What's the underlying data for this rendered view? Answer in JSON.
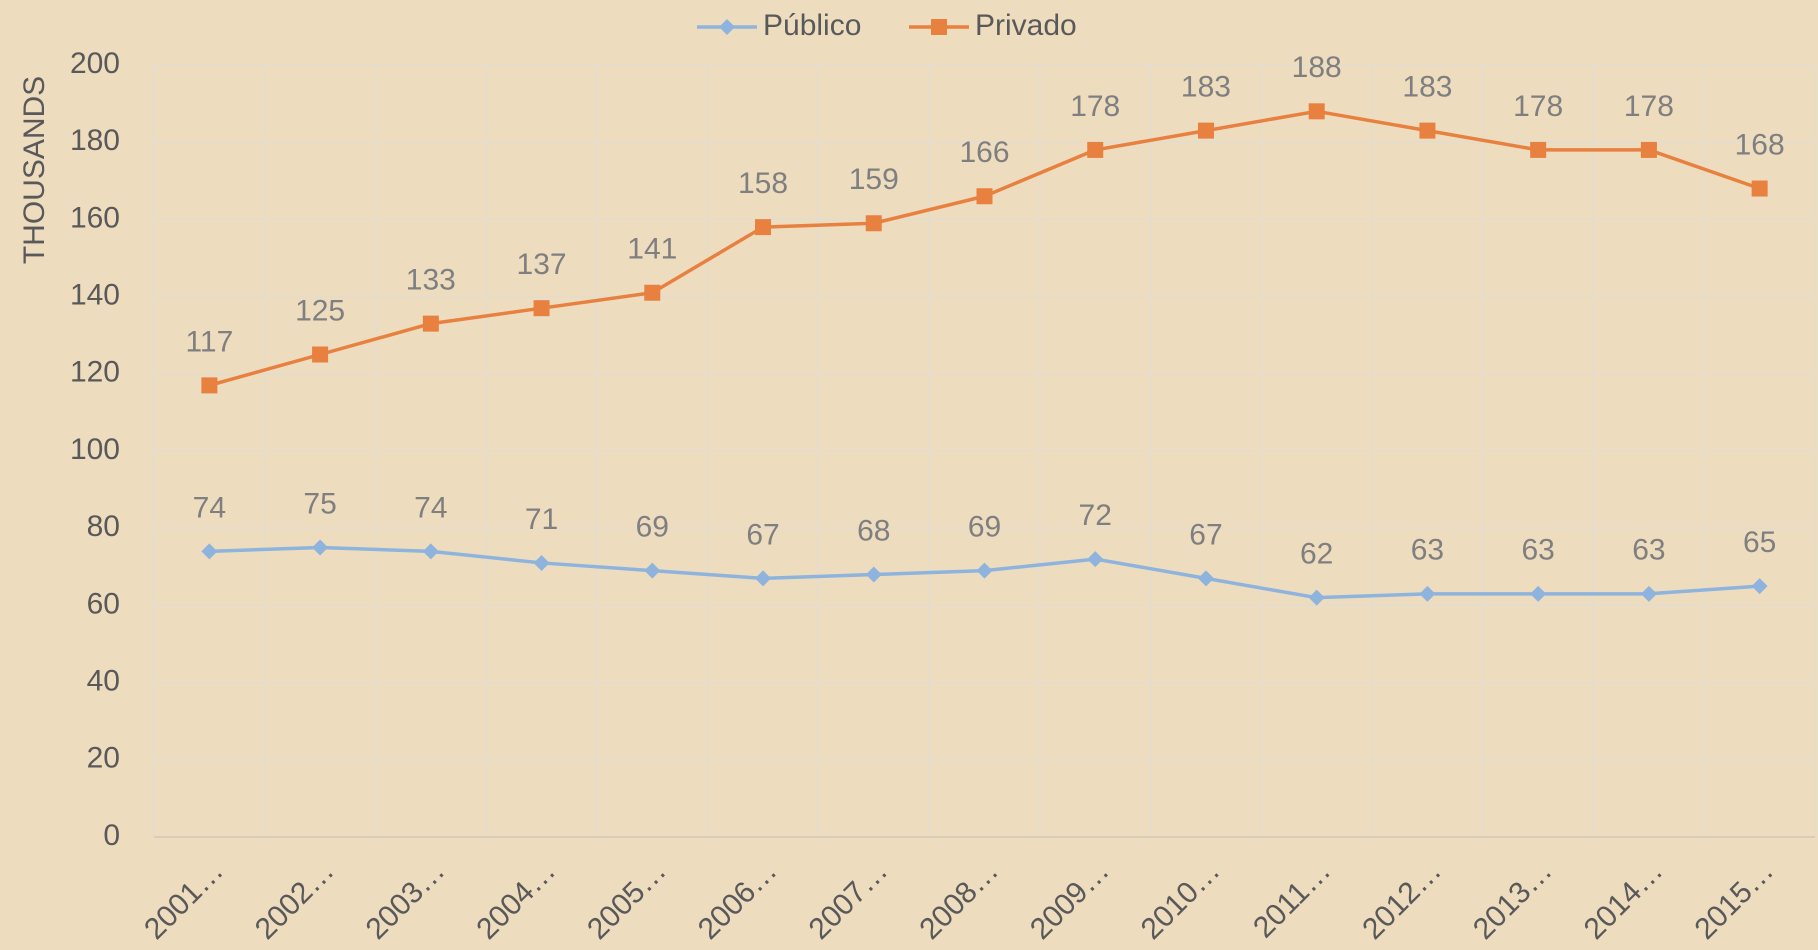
{
  "chart_data": {
    "type": "line",
    "y_label": "THOUSANDS",
    "categories": [
      "2001…",
      "2002…",
      "2003…",
      "2004…",
      "2005…",
      "2006…",
      "2007…",
      "2008…",
      "2009…",
      "2010…",
      "2011…",
      "2012…",
      "2013…",
      "2014…",
      "2015…"
    ],
    "series": [
      {
        "name": "Público",
        "color": "#8eb4de",
        "marker": "diamond",
        "values": [
          74,
          75,
          74,
          71,
          69,
          67,
          68,
          69,
          72,
          67,
          62,
          63,
          63,
          63,
          65
        ]
      },
      {
        "name": "Privado",
        "color": "#e8803f",
        "marker": "square",
        "values": [
          117,
          125,
          133,
          137,
          141,
          158,
          159,
          166,
          178,
          183,
          188,
          183,
          178,
          178,
          168
        ]
      }
    ],
    "ylim": [
      0,
      200
    ],
    "yticks": [
      0,
      20,
      40,
      60,
      80,
      100,
      120,
      140,
      160,
      180,
      200
    ],
    "grid": true,
    "legend": "top"
  }
}
